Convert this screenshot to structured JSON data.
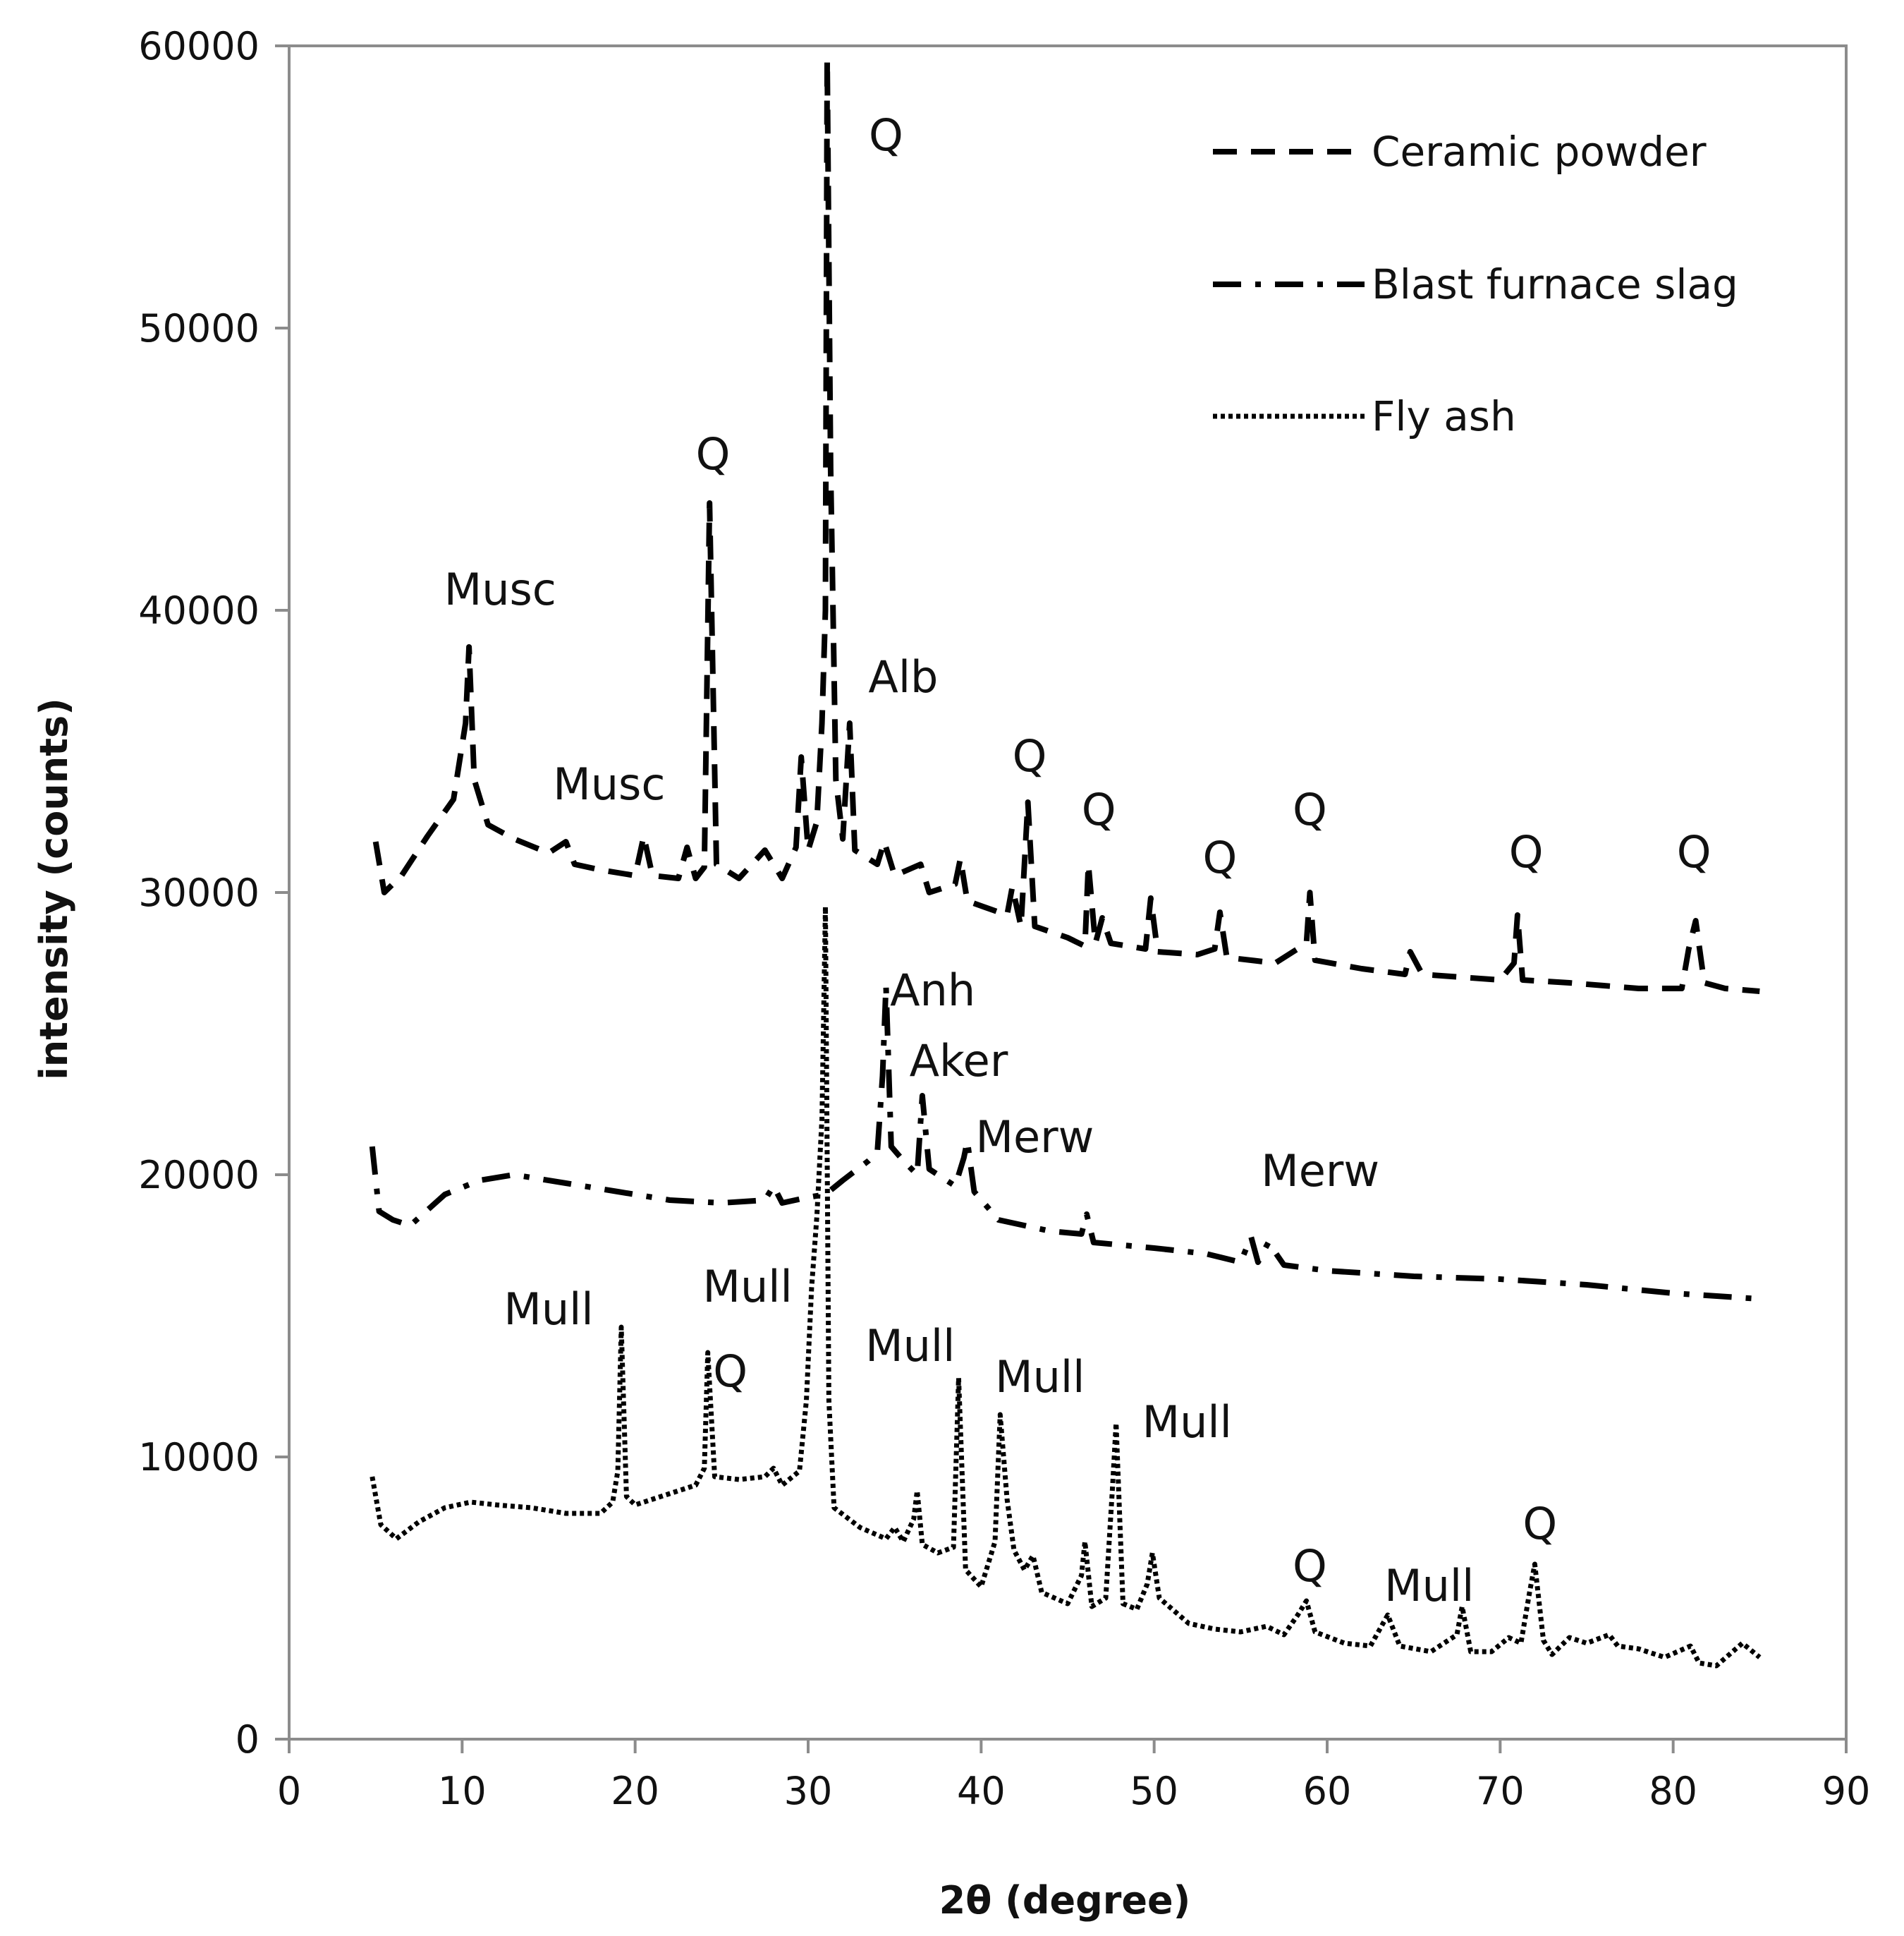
{
  "chart_data": {
    "type": "line",
    "title": "",
    "xlabel": "2θ (degree)",
    "ylabel": "intensity (counts)",
    "xlim": [
      0,
      90
    ],
    "ylim": [
      0,
      60000
    ],
    "xticks": [
      0,
      10,
      20,
      30,
      40,
      50,
      60,
      70,
      80,
      90
    ],
    "yticks": [
      0,
      10000,
      20000,
      30000,
      40000,
      50000,
      60000
    ],
    "xtick_labels": [
      "0",
      "10",
      "20",
      "30",
      "40",
      "50",
      "60",
      "70",
      "80",
      "90"
    ],
    "ytick_labels": [
      "0",
      "10000",
      "20000",
      "30000",
      "40000",
      "50000",
      "60000"
    ],
    "grid": false,
    "legend_position": "top-right",
    "series": [
      {
        "name": "Ceramic powder",
        "style": "dashed",
        "color": "#000000",
        "points": [
          [
            5,
            31800
          ],
          [
            5.5,
            30000
          ],
          [
            6.5,
            30600
          ],
          [
            8,
            32000
          ],
          [
            9.5,
            33300
          ],
          [
            10.2,
            36000
          ],
          [
            10.4,
            38700
          ],
          [
            10.7,
            34000
          ],
          [
            11.5,
            32400
          ],
          [
            13,
            31900
          ],
          [
            15,
            31400
          ],
          [
            16,
            31800
          ],
          [
            16.5,
            31000
          ],
          [
            18,
            30800
          ],
          [
            20,
            30600
          ],
          [
            20.5,
            32000
          ],
          [
            21,
            30600
          ],
          [
            22.5,
            30500
          ],
          [
            23,
            31600
          ],
          [
            23.5,
            30500
          ],
          [
            24,
            30900
          ],
          [
            24.3,
            43800
          ],
          [
            24.7,
            31000
          ],
          [
            26,
            30500
          ],
          [
            27.5,
            31500
          ],
          [
            28.5,
            30500
          ],
          [
            29.3,
            31600
          ],
          [
            29.6,
            34800
          ],
          [
            30,
            31500
          ],
          [
            30.5,
            32500
          ],
          [
            30.8,
            36000
          ],
          [
            31,
            40000
          ],
          [
            31.1,
            59500
          ],
          [
            31.3,
            45000
          ],
          [
            31.6,
            34000
          ],
          [
            32,
            31900
          ],
          [
            32.4,
            36000
          ],
          [
            32.7,
            31500
          ],
          [
            34,
            31000
          ],
          [
            34.4,
            31800
          ],
          [
            35,
            30600
          ],
          [
            36.5,
            31000
          ],
          [
            37,
            30000
          ],
          [
            38.5,
            30300
          ],
          [
            38.8,
            31200
          ],
          [
            39.2,
            29700
          ],
          [
            41.5,
            29200
          ],
          [
            41.8,
            30200
          ],
          [
            42.3,
            28800
          ],
          [
            42.7,
            33200
          ],
          [
            43.1,
            28800
          ],
          [
            45,
            28400
          ],
          [
            46,
            28100
          ],
          [
            46.2,
            31000
          ],
          [
            46.6,
            28200
          ],
          [
            47,
            29100
          ],
          [
            47.5,
            28200
          ],
          [
            49.5,
            28000
          ],
          [
            49.8,
            29800
          ],
          [
            50.2,
            27900
          ],
          [
            52.5,
            27800
          ],
          [
            53.5,
            28000
          ],
          [
            53.8,
            29300
          ],
          [
            54.2,
            27700
          ],
          [
            57,
            27500
          ],
          [
            58.8,
            28200
          ],
          [
            59,
            30000
          ],
          [
            59.3,
            27600
          ],
          [
            62,
            27300
          ],
          [
            64.5,
            27100
          ],
          [
            64.8,
            27900
          ],
          [
            65.5,
            27100
          ],
          [
            70,
            26900
          ],
          [
            70.8,
            27500
          ],
          [
            71,
            29200
          ],
          [
            71.3,
            26900
          ],
          [
            74,
            26800
          ],
          [
            76,
            26700
          ],
          [
            78,
            26600
          ],
          [
            80.5,
            26600
          ],
          [
            80.9,
            28000
          ],
          [
            81.3,
            29000
          ],
          [
            81.8,
            26800
          ],
          [
            83,
            26600
          ],
          [
            85,
            26500
          ]
        ]
      },
      {
        "name": "Blast furnace slag",
        "style": "dash-dot",
        "color": "#000000",
        "points": [
          [
            4.8,
            21000
          ],
          [
            5.2,
            18700
          ],
          [
            6,
            18400
          ],
          [
            7,
            18200
          ],
          [
            9,
            19300
          ],
          [
            11,
            19800
          ],
          [
            13,
            20000
          ],
          [
            16,
            19700
          ],
          [
            19,
            19400
          ],
          [
            22,
            19100
          ],
          [
            25,
            19000
          ],
          [
            27.5,
            19100
          ],
          [
            28,
            19600
          ],
          [
            28.5,
            19000
          ],
          [
            30,
            19200
          ],
          [
            31,
            19300
          ],
          [
            32,
            19800
          ],
          [
            33.5,
            20500
          ],
          [
            34,
            20800
          ],
          [
            34.3,
            23500
          ],
          [
            34.5,
            26700
          ],
          [
            34.8,
            21000
          ],
          [
            35.5,
            20500
          ],
          [
            36.3,
            20000
          ],
          [
            36.6,
            22800
          ],
          [
            37,
            20200
          ],
          [
            38.5,
            19600
          ],
          [
            39,
            20600
          ],
          [
            39.2,
            21200
          ],
          [
            39.6,
            19400
          ],
          [
            41,
            18400
          ],
          [
            44,
            18000
          ],
          [
            45.8,
            17900
          ],
          [
            46.1,
            18600
          ],
          [
            46.5,
            17600
          ],
          [
            50,
            17400
          ],
          [
            53,
            17200
          ],
          [
            55,
            16900
          ],
          [
            55.6,
            17800
          ],
          [
            56,
            16900
          ],
          [
            56.6,
            17600
          ],
          [
            57.5,
            16800
          ],
          [
            60,
            16600
          ],
          [
            65,
            16400
          ],
          [
            70,
            16300
          ],
          [
            75,
            16100
          ],
          [
            80,
            15800
          ],
          [
            85,
            15600
          ]
        ]
      },
      {
        "name": "Fly ash",
        "style": "dotted",
        "color": "#000000",
        "points": [
          [
            4.8,
            9300
          ],
          [
            5.3,
            7600
          ],
          [
            6.2,
            7100
          ],
          [
            7.5,
            7700
          ],
          [
            9,
            8200
          ],
          [
            10.5,
            8400
          ],
          [
            12,
            8300
          ],
          [
            14,
            8200
          ],
          [
            16,
            8000
          ],
          [
            18,
            8000
          ],
          [
            18.7,
            8400
          ],
          [
            19,
            9500
          ],
          [
            19.2,
            14600
          ],
          [
            19.5,
            8600
          ],
          [
            20,
            8300
          ],
          [
            22,
            8700
          ],
          [
            23.5,
            9000
          ],
          [
            24,
            9600
          ],
          [
            24.2,
            13700
          ],
          [
            24.6,
            9300
          ],
          [
            26,
            9200
          ],
          [
            27.5,
            9300
          ],
          [
            28,
            9600
          ],
          [
            28.5,
            9000
          ],
          [
            29.5,
            9500
          ],
          [
            29.9,
            12000
          ],
          [
            30.2,
            16000
          ],
          [
            30.5,
            18500
          ],
          [
            30.8,
            22000
          ],
          [
            31,
            29500
          ],
          [
            31.2,
            12000
          ],
          [
            31.5,
            8200
          ],
          [
            33,
            7500
          ],
          [
            34.5,
            7100
          ],
          [
            35,
            7500
          ],
          [
            35.5,
            7000
          ],
          [
            36.1,
            7800
          ],
          [
            36.3,
            8800
          ],
          [
            36.6,
            6900
          ],
          [
            37.5,
            6600
          ],
          [
            38.4,
            6800
          ],
          [
            38.7,
            12800
          ],
          [
            39.1,
            6000
          ],
          [
            40,
            5400
          ],
          [
            40.8,
            7000
          ],
          [
            41.1,
            11500
          ],
          [
            41.5,
            8500
          ],
          [
            41.9,
            6700
          ],
          [
            42.5,
            6000
          ],
          [
            43,
            6500
          ],
          [
            43.5,
            5200
          ],
          [
            45,
            4800
          ],
          [
            45.8,
            5800
          ],
          [
            46,
            7000
          ],
          [
            46.4,
            4700
          ],
          [
            47.2,
            5000
          ],
          [
            47.6,
            9000
          ],
          [
            47.8,
            11200
          ],
          [
            48.2,
            4800
          ],
          [
            49,
            4600
          ],
          [
            49.6,
            5500
          ],
          [
            49.9,
            6600
          ],
          [
            50.3,
            5000
          ],
          [
            52,
            4100
          ],
          [
            53.5,
            3900
          ],
          [
            55,
            3800
          ],
          [
            56.5,
            4000
          ],
          [
            57.5,
            3700
          ],
          [
            58.3,
            4400
          ],
          [
            58.8,
            4900
          ],
          [
            59.3,
            3800
          ],
          [
            61,
            3400
          ],
          [
            62.5,
            3300
          ],
          [
            63.5,
            4400
          ],
          [
            64.2,
            3300
          ],
          [
            66,
            3100
          ],
          [
            67.5,
            3700
          ],
          [
            67.8,
            4700
          ],
          [
            68.3,
            3100
          ],
          [
            69.5,
            3100
          ],
          [
            70.5,
            3600
          ],
          [
            71.2,
            3400
          ],
          [
            71.7,
            5200
          ],
          [
            72,
            6200
          ],
          [
            72.5,
            3500
          ],
          [
            73,
            3000
          ],
          [
            74,
            3600
          ],
          [
            75,
            3400
          ],
          [
            76.3,
            3700
          ],
          [
            76.8,
            3300
          ],
          [
            78,
            3200
          ],
          [
            79.5,
            2900
          ],
          [
            81,
            3300
          ],
          [
            81.5,
            2700
          ],
          [
            82.5,
            2600
          ],
          [
            84,
            3400
          ],
          [
            85,
            2900
          ]
        ]
      }
    ],
    "annotations": [
      {
        "text": "Q",
        "x": 34.5,
        "y": 56300
      },
      {
        "text": "Q",
        "x": 24.5,
        "y": 45000
      },
      {
        "text": "Musc",
        "x": 12.2,
        "y": 40200
      },
      {
        "text": "Alb",
        "x": 35.5,
        "y": 37100
      },
      {
        "text": "Musc",
        "x": 18.5,
        "y": 33300
      },
      {
        "text": "Q",
        "x": 42.8,
        "y": 34300
      },
      {
        "text": "Q",
        "x": 46.8,
        "y": 32400
      },
      {
        "text": "Q",
        "x": 53.8,
        "y": 30700
      },
      {
        "text": "Q",
        "x": 59,
        "y": 32400
      },
      {
        "text": "Q",
        "x": 71.5,
        "y": 30900
      },
      {
        "text": "Q",
        "x": 81.2,
        "y": 30900
      },
      {
        "text": "Anh",
        "x": 37.2,
        "y": 26000
      },
      {
        "text": "Aker",
        "x": 38.7,
        "y": 23500
      },
      {
        "text": "Merw",
        "x": 43.1,
        "y": 20800
      },
      {
        "text": "Merw",
        "x": 59.6,
        "y": 19600
      },
      {
        "text": "Mull",
        "x": 26.5,
        "y": 15500
      },
      {
        "text": "Mull",
        "x": 15,
        "y": 14700
      },
      {
        "text": "Q",
        "x": 25.5,
        "y": 12500
      },
      {
        "text": "Mull",
        "x": 35.9,
        "y": 13400
      },
      {
        "text": "Mull",
        "x": 43.4,
        "y": 12300
      },
      {
        "text": "Mull",
        "x": 51.9,
        "y": 10700
      },
      {
        "text": "Q",
        "x": 59,
        "y": 5600
      },
      {
        "text": "Mull",
        "x": 65.9,
        "y": 4900
      },
      {
        "text": "Q",
        "x": 72.3,
        "y": 7100
      }
    ]
  }
}
